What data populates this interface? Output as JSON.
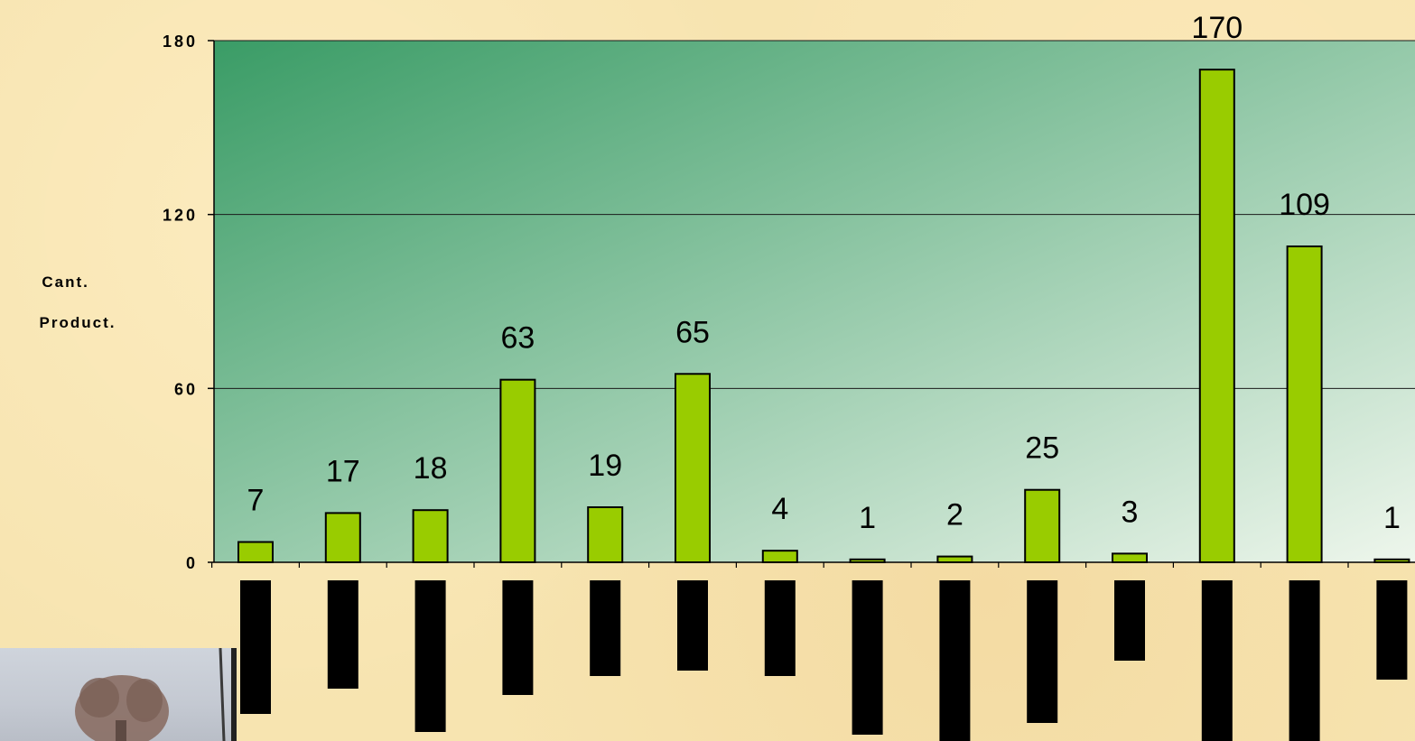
{
  "chart_data": {
    "type": "bar",
    "ylabel_lines": [
      "Cant.",
      "Product."
    ],
    "values": [
      7,
      17,
      18,
      63,
      19,
      65,
      4,
      1,
      2,
      25,
      3,
      170,
      109,
      1
    ],
    "category_label_lengths": [
      148,
      120,
      168,
      127,
      106,
      100,
      106,
      171,
      178,
      158,
      89,
      179,
      178,
      110
    ],
    "ylim": [
      0,
      180
    ],
    "yticks": [
      0,
      60,
      120,
      180
    ],
    "ytick_labels": [
      "0",
      "60",
      "120",
      "180"
    ],
    "grid": true,
    "legend": "none",
    "colors": {
      "bar": "#99cc00",
      "plot_top_left": "#3a9c66",
      "plot_bottom_right": "#eef6ec",
      "category_label_block": "#000000"
    }
  }
}
